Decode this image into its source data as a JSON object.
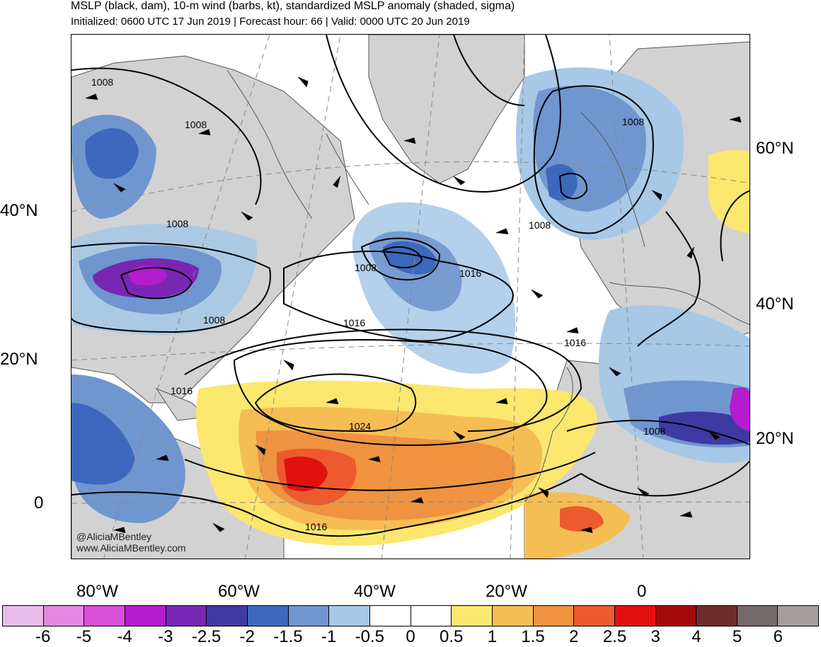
{
  "header": {
    "title": "MSLP (black, dam), 10-m wind (barbs, kt), standardized MSLP anomaly (shaded, sigma)",
    "subtitle": "Initialized: 0600 UTC 17 Jun 2019 | Forecast hour: 66 | Valid: 0000 UTC 20 Jun 2019"
  },
  "axes": {
    "left_lat_labels": [
      "40°N",
      "20°N",
      "0"
    ],
    "right_lat_labels": [
      "60°N",
      "40°N",
      "20°N"
    ],
    "lon_labels": [
      "80°W",
      "60°W",
      "40°W",
      "20°W",
      "0"
    ]
  },
  "contour_labels": [
    "1008",
    "1008",
    "1008",
    "1008",
    "1008",
    "1008",
    "1008",
    "1008",
    "1016",
    "1016",
    "1016",
    "1016",
    "1016",
    "1024"
  ],
  "watermark": {
    "handle": "@AliciaMBentley",
    "site": "www.AliciaMBentley.com"
  },
  "colorbar": {
    "labels": [
      "-6",
      "-5",
      "-4",
      "-3",
      "-2.5",
      "-2",
      "-1.5",
      "-1",
      "-0.5",
      "0",
      "0.5",
      "1",
      "1.5",
      "2",
      "2.5",
      "3",
      "4",
      "5",
      "6"
    ],
    "colors": [
      "#e9bde9",
      "#e488e4",
      "#d84fd8",
      "#b31ccf",
      "#7a26b5",
      "#3f3aa3",
      "#3d68bd",
      "#6f96cf",
      "#a7c8e6",
      "#ffffff",
      "#ffffff",
      "#fbe76e",
      "#f5be54",
      "#ef9341",
      "#ec5a2e",
      "#e1110f",
      "#a40a0a",
      "#6e2b2b",
      "#76696a",
      "#a89c9c"
    ]
  },
  "map_colors": {
    "land": "#d2d2d2",
    "ocean": "#ffffff",
    "coast": "#555555",
    "contour": "#000000"
  }
}
